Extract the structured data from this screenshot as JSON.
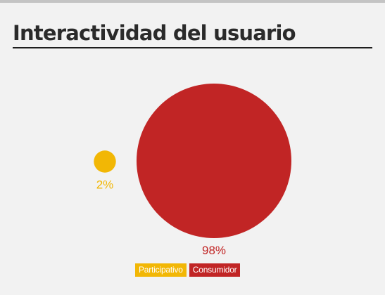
{
  "chart_data": {
    "type": "bubble",
    "title": "Interactividad del usuario",
    "series": [
      {
        "name": "Participativo",
        "value": 2,
        "label": "2%",
        "color": "#f2b705"
      },
      {
        "name": "Consumidor",
        "value": 98,
        "label": "98%",
        "color": "#c12525"
      }
    ],
    "legend_placement": "bottom-center"
  }
}
